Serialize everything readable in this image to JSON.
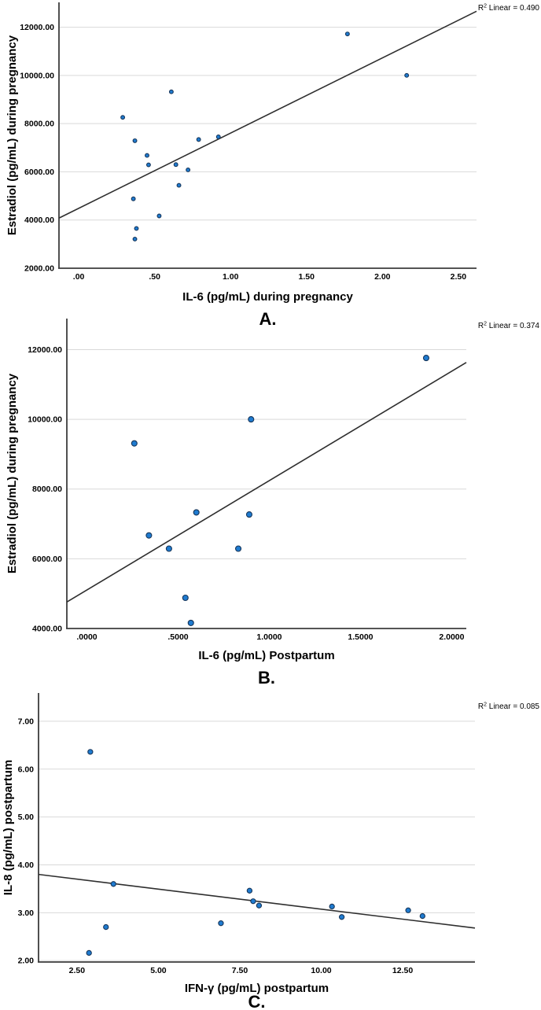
{
  "figure": {
    "background": "#ffffff",
    "description": "Three stacked SPSS-style scatter plots with linear fit lines"
  },
  "styles": {
    "marker_fill": "#1f7bd0",
    "marker_stroke": "#17365a",
    "fit_line_color": "#2e2e2e",
    "axis_color": "#3c3c3c",
    "grid_color": "#d9d9d9",
    "text_color": "#000000"
  },
  "chart_data": [
    {
      "panel": "A",
      "type": "scatter",
      "caption": "A.",
      "xlabel": "IL-6 (pg/mL) during pregnancy",
      "ylabel": "Estradiol (pg/mL) during pregnancy",
      "r2_base": "R",
      "r2_sup": "2",
      "r2_rest": " Linear = 0.490",
      "xlim": [
        -0.13,
        2.62
      ],
      "ylim": [
        2000,
        13030
      ],
      "xtick_values": [
        0,
        0.5,
        1.0,
        1.5,
        2.0,
        2.5
      ],
      "xtick_labels": [
        ".00",
        ".50",
        "1.00",
        "1.50",
        "2.00",
        "2.50"
      ],
      "ytick_values": [
        2000,
        4000,
        6000,
        8000,
        10000,
        12000
      ],
      "ytick_labels": [
        "2000.00",
        "4000.00",
        "6000.00",
        "8000.00",
        "10000.00",
        "12000.00"
      ],
      "grid": "horizontal",
      "legend": "none",
      "points": [
        [
          0.29,
          8260
        ],
        [
          0.36,
          4880
        ],
        [
          0.37,
          7290
        ],
        [
          0.37,
          3210
        ],
        [
          0.38,
          3650
        ],
        [
          0.45,
          6680
        ],
        [
          0.46,
          6290
        ],
        [
          0.53,
          4170
        ],
        [
          0.61,
          9320
        ],
        [
          0.64,
          6300
        ],
        [
          0.66,
          5440
        ],
        [
          0.72,
          6080
        ],
        [
          0.79,
          7340
        ],
        [
          0.92,
          7450
        ],
        [
          1.77,
          11720
        ],
        [
          2.16,
          10000
        ]
      ],
      "fit_line": [
        [
          -0.13,
          4080
        ],
        [
          2.62,
          12660
        ]
      ],
      "marker_radius": 2.4
    },
    {
      "panel": "B",
      "type": "scatter",
      "caption": "B.",
      "xlabel": "IL-6 (pg/mL) Postpartum",
      "ylabel": "Estradiol (pg/mL) during pregnancy",
      "r2_base": "R",
      "r2_sup": "2",
      "r2_rest": " Linear = 0.374",
      "xlim": [
        -0.11,
        2.08
      ],
      "ylim": [
        4000,
        12890
      ],
      "xtick_values": [
        0,
        0.5,
        1.0,
        1.5,
        2.0
      ],
      "xtick_labels": [
        ".0000",
        ".5000",
        "1.0000",
        "1.5000",
        "2.0000"
      ],
      "ytick_values": [
        4000,
        6000,
        8000,
        10000,
        12000
      ],
      "ytick_labels": [
        "4000.00",
        "6000.00",
        "8000.00",
        "10000.00",
        "12000.00"
      ],
      "grid": "horizontal",
      "legend": "none",
      "points": [
        [
          0.26,
          9310
        ],
        [
          0.34,
          6670
        ],
        [
          0.45,
          6290
        ],
        [
          0.54,
          4880
        ],
        [
          0.57,
          4160
        ],
        [
          0.6,
          7330
        ],
        [
          0.83,
          6290
        ],
        [
          0.89,
          7270
        ],
        [
          0.9,
          10000
        ],
        [
          1.86,
          11760
        ]
      ],
      "fit_line": [
        [
          -0.11,
          4760
        ],
        [
          2.08,
          11630
        ]
      ],
      "marker_radius": 3.5
    },
    {
      "panel": "C",
      "type": "scatter",
      "caption": "C.",
      "xlabel": "IFN-γ (pg/mL) postpartum",
      "ylabel": "IL-8 (pg/mL) postpartum",
      "r2_base": "R",
      "r2_sup": "2",
      "r2_rest": " Linear = 0.085",
      "xlim": [
        1.32,
        14.72
      ],
      "ylim": [
        1.97,
        7.59
      ],
      "xtick_values": [
        2.5,
        5.0,
        7.5,
        10.0,
        12.5
      ],
      "xtick_labels": [
        "2.50",
        "5.00",
        "7.50",
        "10.00",
        "12.50"
      ],
      "ytick_values": [
        2.0,
        3.0,
        4.0,
        5.0,
        6.0,
        7.0
      ],
      "ytick_labels": [
        "2.00",
        "3.00",
        "4.00",
        "5.00",
        "6.00",
        "7.00"
      ],
      "grid": "horizontal",
      "legend": "none",
      "points": [
        [
          2.87,
          2.16
        ],
        [
          2.91,
          6.36
        ],
        [
          3.39,
          2.7
        ],
        [
          3.62,
          3.6
        ],
        [
          6.92,
          2.78
        ],
        [
          7.8,
          3.46
        ],
        [
          7.91,
          3.24
        ],
        [
          8.09,
          3.15
        ],
        [
          10.33,
          3.13
        ],
        [
          10.63,
          2.91
        ],
        [
          12.67,
          3.05
        ],
        [
          13.11,
          2.93
        ]
      ],
      "fit_line": [
        [
          1.32,
          3.8
        ],
        [
          14.72,
          2.68
        ]
      ],
      "marker_radius": 3.1
    }
  ]
}
